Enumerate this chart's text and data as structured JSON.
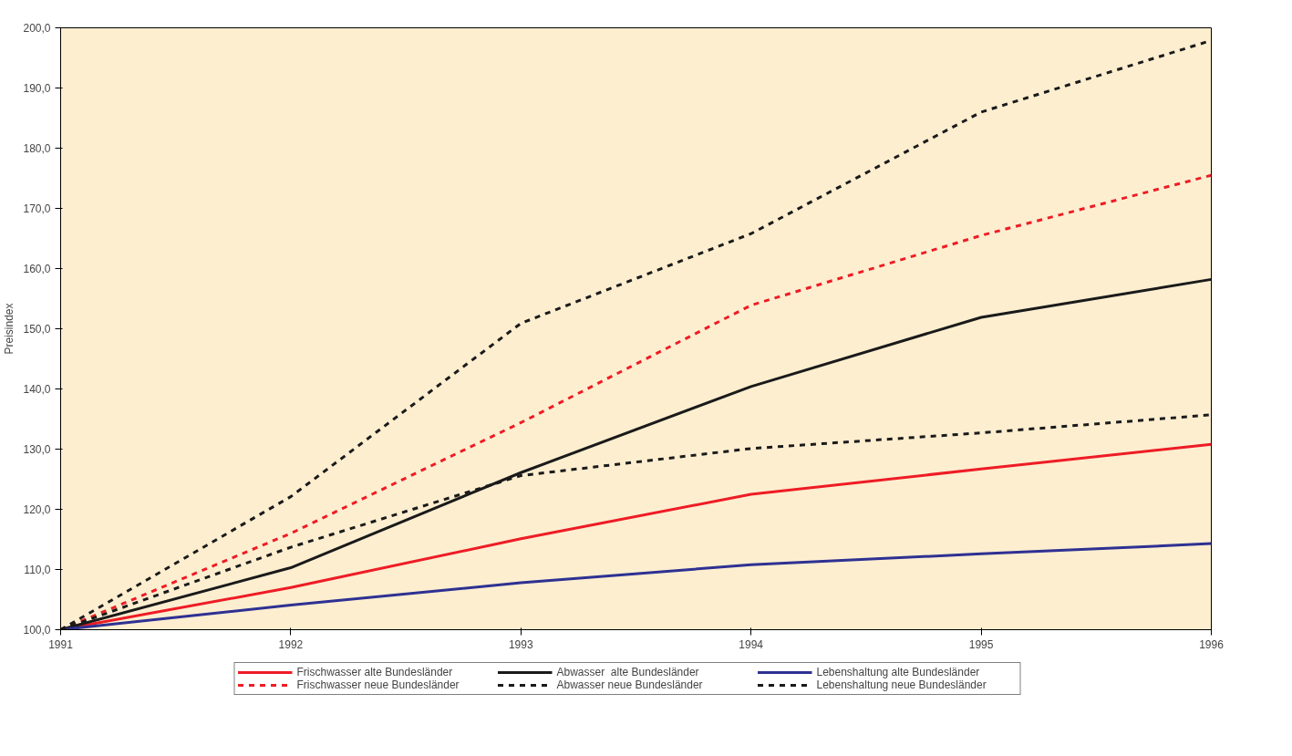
{
  "chart_data": {
    "type": "line",
    "ylabel": "Preisindex",
    "x": [
      1991,
      1992,
      1993,
      1994,
      1995,
      1996
    ],
    "xlim": [
      1991,
      1996
    ],
    "xticks": [
      1991,
      1992,
      1993,
      1994,
      1995,
      1996
    ],
    "ylim": [
      100,
      200
    ],
    "yticks": [
      {
        "value": 100,
        "label": "100,0"
      },
      {
        "value": 110,
        "label": "110,0"
      },
      {
        "value": 120,
        "label": "120,0"
      },
      {
        "value": 130,
        "label": "130,0"
      },
      {
        "value": 140,
        "label": "140,0"
      },
      {
        "value": 150,
        "label": "150,0"
      },
      {
        "value": 160,
        "label": "160,0"
      },
      {
        "value": 170,
        "label": "170,0"
      },
      {
        "value": 180,
        "label": "180,0"
      },
      {
        "value": 190,
        "label": "190,0"
      },
      {
        "value": 200,
        "label": "200,0"
      }
    ],
    "grid": false,
    "legend": "bottom",
    "marker": "none",
    "series": [
      {
        "name": "Frischwasser alte Bundesländer",
        "color": "#ee1c25",
        "line_style": "solid",
        "values": [
          100,
          107.0,
          115.1,
          122.5,
          126.7,
          130.8
        ]
      },
      {
        "name": "Abwasser  alte Bundesländer",
        "color": "#1a1a1a",
        "line_style": "solid",
        "values": [
          100,
          110.3,
          126.1,
          140.4,
          151.9,
          158.2
        ]
      },
      {
        "name": "Lebenshaltung alte Bundesländer",
        "color": "#2e3192",
        "line_style": "solid",
        "values": [
          100,
          104.1,
          107.8,
          110.8,
          112.6,
          114.3
        ]
      },
      {
        "name": "Frischwasser neue Bundesländer",
        "color": "#ee1c25",
        "line_style": "dashed",
        "values": [
          100,
          116.0,
          134.4,
          153.9,
          165.5,
          175.5
        ]
      },
      {
        "name": "Abwasser neue Bundesländer",
        "color": "#1a1a1a",
        "line_style": "dashed",
        "values": [
          100,
          122.1,
          150.9,
          165.8,
          186.0,
          197.9
        ]
      },
      {
        "name": "Lebenshaltung neue Bundesländer",
        "color": "#1a1a1a",
        "line_style": "dashed",
        "values": [
          100,
          113.7,
          125.6,
          130.1,
          132.7,
          135.7
        ]
      }
    ]
  }
}
